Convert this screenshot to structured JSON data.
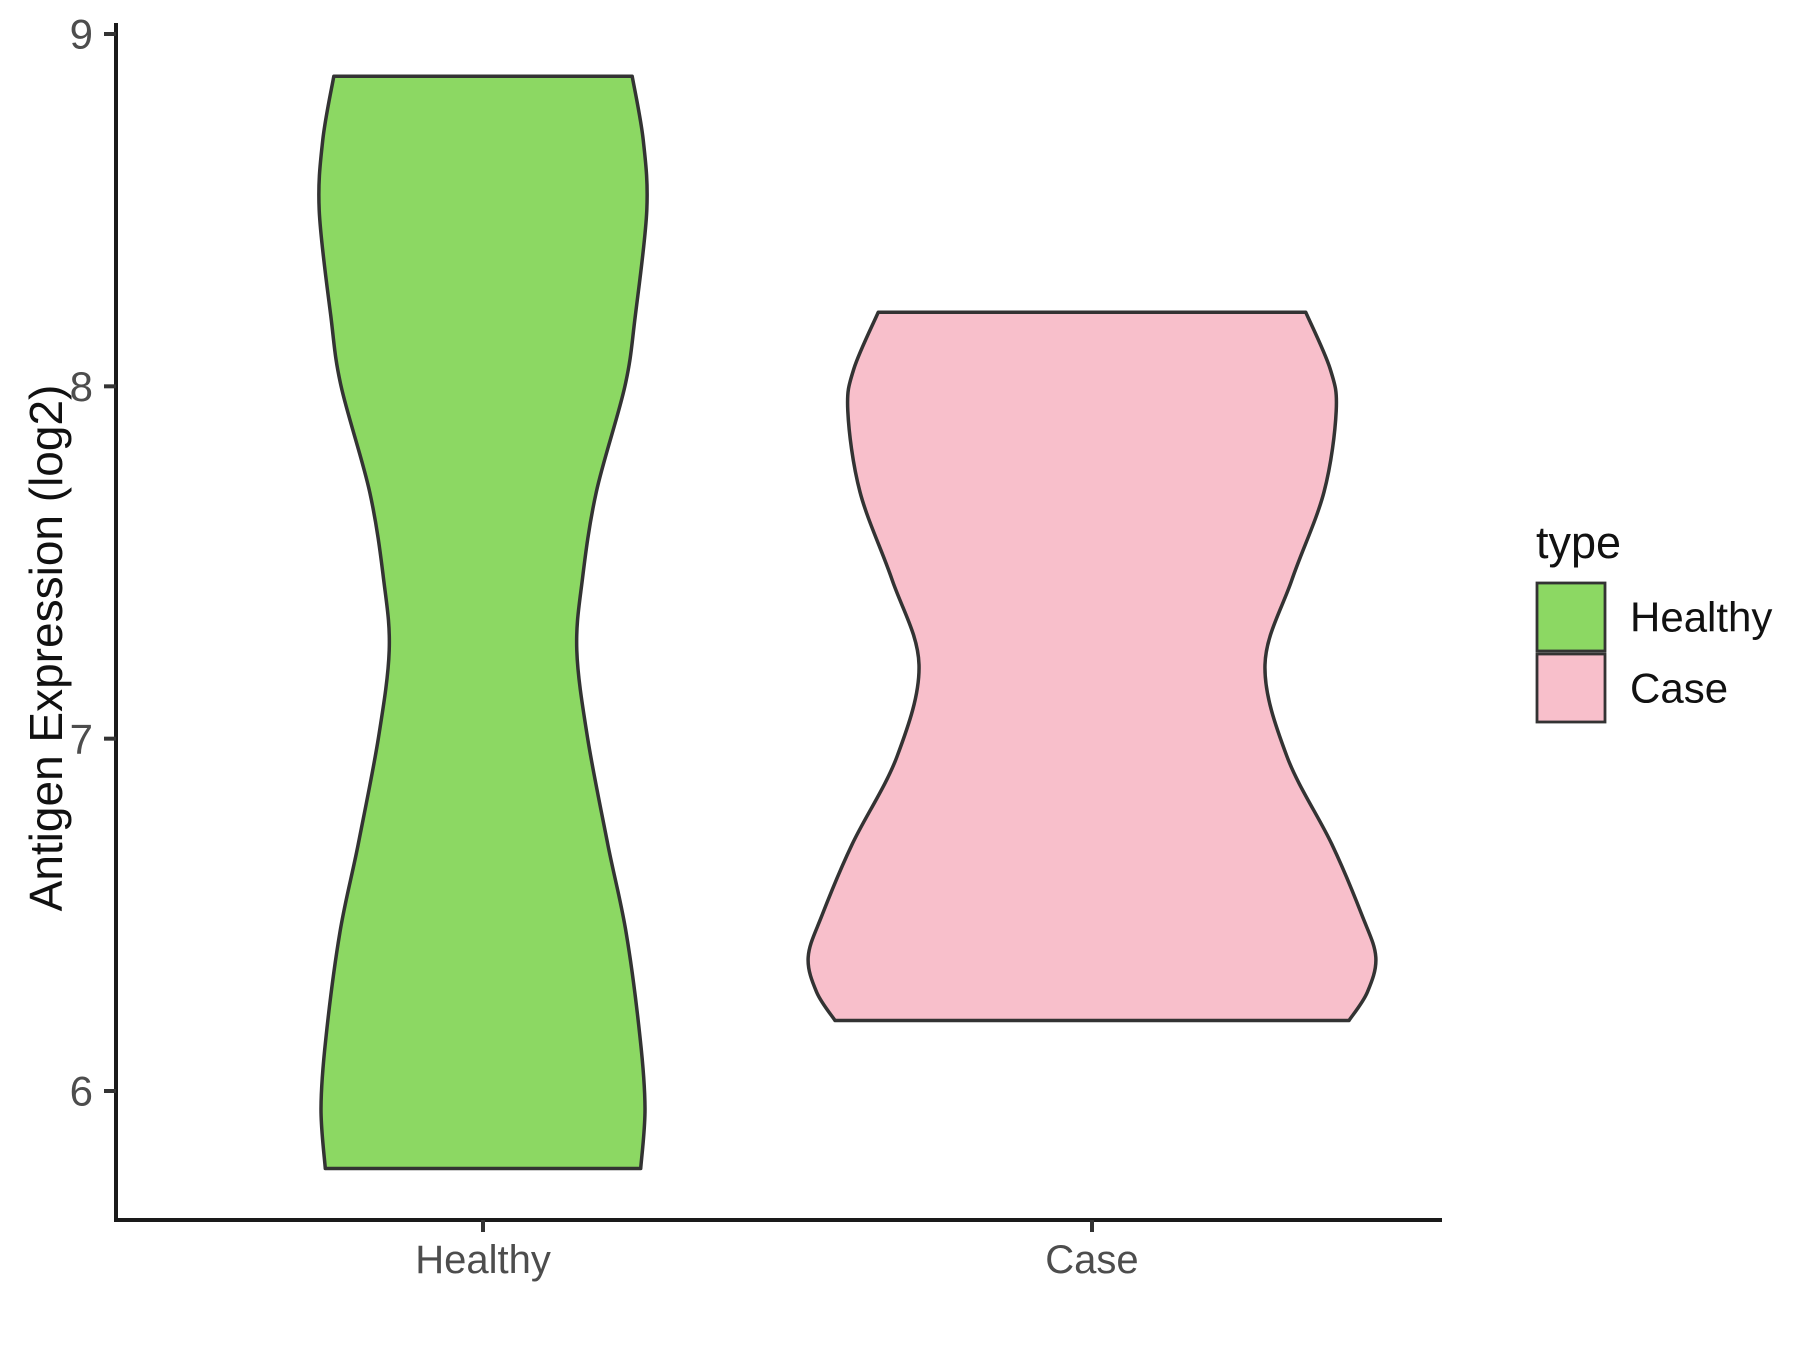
{
  "y_axis": {
    "title": "Antigen Expression (log2)",
    "ticks": [
      {
        "label": "9",
        "value": 9
      },
      {
        "label": "8",
        "value": 8
      },
      {
        "label": "7",
        "value": 7
      },
      {
        "label": "6",
        "value": 6
      }
    ]
  },
  "x_axis": {
    "ticks": [
      {
        "label": "Healthy",
        "position": 1
      },
      {
        "label": "Case",
        "position": 2
      }
    ]
  },
  "legend": {
    "title": "type",
    "items": [
      {
        "label": "Healthy",
        "color": "#8CD863"
      },
      {
        "label": "Case",
        "color": "#F8BFCB"
      }
    ]
  },
  "style": {
    "violin_stroke": "#333333",
    "axis_color": "#1a1a1a",
    "tick_label_color": "#4d4d4d"
  },
  "chart_data": {
    "type": "violin",
    "title": "",
    "xlabel": "",
    "ylabel": "Antigen Expression (log2)",
    "categories": [
      "Healthy",
      "Case"
    ],
    "y_ticks": [
      6,
      7,
      8,
      9
    ],
    "ylim": [
      5.6,
      9.05
    ],
    "grid": false,
    "legend_position": "right",
    "legend_title": "type",
    "series": [
      {
        "name": "Healthy",
        "color": "#8CD863",
        "center": 1,
        "value_range": [
          5.78,
          8.88
        ],
        "waist_value": 7.25,
        "profile": [
          [
            8.88,
            0.245
          ],
          [
            8.7,
            0.263
          ],
          [
            8.5,
            0.269
          ],
          [
            8.2,
            0.25
          ],
          [
            8.0,
            0.233
          ],
          [
            7.7,
            0.186
          ],
          [
            7.45,
            0.163
          ],
          [
            7.25,
            0.154
          ],
          [
            7.0,
            0.172
          ],
          [
            6.7,
            0.205
          ],
          [
            6.45,
            0.235
          ],
          [
            6.15,
            0.258
          ],
          [
            5.95,
            0.266
          ],
          [
            5.78,
            0.259
          ]
        ]
      },
      {
        "name": "Case",
        "color": "#F8BFCB",
        "center": 2,
        "value_range": [
          6.2,
          8.21
        ],
        "waist_value": 7.21,
        "profile": [
          [
            8.21,
            0.351
          ],
          [
            8.05,
            0.391
          ],
          [
            7.93,
            0.401
          ],
          [
            7.7,
            0.381
          ],
          [
            7.45,
            0.328
          ],
          [
            7.21,
            0.284
          ],
          [
            6.95,
            0.32
          ],
          [
            6.7,
            0.394
          ],
          [
            6.5,
            0.443
          ],
          [
            6.38,
            0.466
          ],
          [
            6.28,
            0.452
          ],
          [
            6.2,
            0.422
          ]
        ]
      }
    ]
  }
}
